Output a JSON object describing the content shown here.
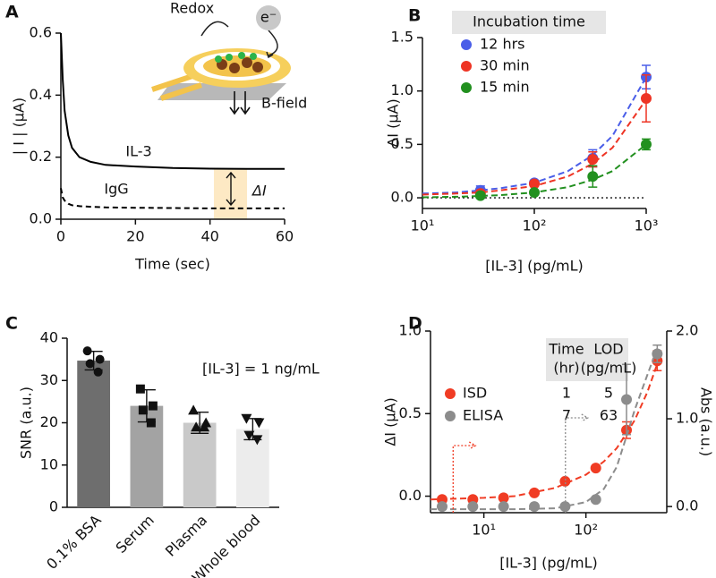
{
  "chart_data": [
    {
      "type": "line",
      "panel_label": "A",
      "xlabel": "Time (sec)",
      "ylabel": "| I | (μA)",
      "xlim": [
        0,
        60
      ],
      "xticks": [
        0,
        20,
        40,
        60
      ],
      "ylim": [
        0,
        0.6
      ],
      "yticks": [
        {
          "value": 0,
          "label": "0.0"
        },
        0.2,
        0.4,
        0.6
      ],
      "x": [
        0,
        0.5,
        1,
        2,
        3,
        5,
        8,
        12,
        20,
        30,
        40,
        50,
        60
      ],
      "series": [
        {
          "name": "IL-3",
          "color": "#000000",
          "linestyle": "solid",
          "values": [
            0.6,
            0.45,
            0.35,
            0.27,
            0.23,
            0.2,
            0.185,
            0.175,
            0.17,
            0.165,
            0.163,
            0.162,
            0.162
          ]
        },
        {
          "name": "IgG",
          "color": "#000000",
          "linestyle": "dashed",
          "values": [
            0.1,
            0.07,
            0.06,
            0.05,
            0.045,
            0.042,
            0.04,
            0.038,
            0.037,
            0.036,
            0.035,
            0.035,
            0.035
          ]
        }
      ],
      "annotations": [
        "ΔI",
        "Redox",
        "e⁻",
        "B-field"
      ]
    },
    {
      "type": "scatter",
      "panel_label": "B",
      "xlabel": "[IL-3] (pg/mL)",
      "ylabel": "ΔI (μA)",
      "xscale": "log",
      "xlim": [
        10,
        1000
      ],
      "xticks": [
        {
          "value": 10,
          "label": "10¹"
        },
        {
          "value": 100,
          "label": "10²"
        },
        {
          "value": 1000,
          "label": "10³"
        }
      ],
      "ylim": [
        -0.1,
        1.5
      ],
      "yticks": [
        {
          "value": 0,
          "label": "0.0"
        },
        0.5,
        {
          "value": 1,
          "label": "1.0"
        },
        1.5
      ],
      "reference_line": 0,
      "legend_title": "Incubation time",
      "x": [
        33,
        100,
        333,
        1000
      ],
      "fit_x": [
        10,
        20,
        33,
        50,
        100,
        200,
        333,
        500,
        1000
      ],
      "series": [
        {
          "name": "12 hrs",
          "color": "#4a5ee8",
          "values": [
            0.07,
            0.14,
            0.37,
            1.13
          ],
          "errors": [
            0.04,
            0.02,
            0.08,
            0.11
          ],
          "fit_values": [
            0.04,
            0.05,
            0.07,
            0.09,
            0.14,
            0.25,
            0.4,
            0.58,
            1.13
          ]
        },
        {
          "name": "30 min",
          "color": "#ee3424",
          "values": [
            0.04,
            0.13,
            0.36,
            0.93
          ],
          "errors": [
            0.03,
            0.02,
            0.07,
            0.22
          ],
          "fit_values": [
            0.03,
            0.04,
            0.05,
            0.07,
            0.11,
            0.2,
            0.32,
            0.47,
            0.92
          ]
        },
        {
          "name": "15 min",
          "color": "#22901f",
          "values": [
            0.02,
            0.05,
            0.2,
            0.5
          ],
          "errors": [
            0.02,
            0.02,
            0.1,
            0.05
          ],
          "fit_values": [
            0.005,
            0.01,
            0.017,
            0.025,
            0.05,
            0.1,
            0.17,
            0.25,
            0.5
          ]
        }
      ]
    },
    {
      "type": "bar",
      "panel_label": "C",
      "ylabel": "SNR (a.u.)",
      "annotation": "[IL-3] = 1 ng/mL",
      "ylim": [
        0,
        40
      ],
      "yticks": [
        0,
        10,
        20,
        30,
        40
      ],
      "categories": [
        "0.1% BSA",
        "Serum",
        "Plasma",
        "Whole blood"
      ],
      "values": [
        34.7,
        24,
        20,
        18.5
      ],
      "errors": [
        2.2,
        3.8,
        2.5,
        2.5
      ],
      "colors": [
        "#6e6e6e",
        "#a3a3a3",
        "#c9c9c9",
        "#ececec"
      ],
      "markers": [
        "circle",
        "square",
        "triangle",
        "triangle-down"
      ],
      "points": [
        [
          37,
          35,
          34,
          32
        ],
        [
          28,
          24,
          23,
          20
        ],
        [
          23,
          20,
          19,
          19
        ],
        [
          21,
          20,
          17,
          16
        ]
      ]
    },
    {
      "type": "scatter",
      "panel_label": "D",
      "xlabel": "[IL-3] (pg/mL)",
      "ylabel": "ΔI (μA)",
      "y2label": "Abs (a.u.)",
      "xscale": "log",
      "xlim": [
        3,
        620
      ],
      "xticks": [
        {
          "value": 10,
          "label": "10¹"
        },
        {
          "value": 100,
          "label": "10²"
        }
      ],
      "ylim": [
        -0.1,
        1.0
      ],
      "yticks": [
        {
          "value": 0,
          "label": "0.0"
        },
        0.5,
        {
          "value": 1,
          "label": "1.0"
        }
      ],
      "y2lim": [
        -0.07,
        2.0
      ],
      "y2ticks": [
        {
          "value": 0,
          "label": "0.0"
        },
        {
          "value": 1,
          "label": "1.0"
        },
        {
          "value": 2,
          "label": "2.0"
        }
      ],
      "x": [
        3.9,
        7.8,
        15.6,
        31.25,
        62.5,
        125,
        250,
        500
      ],
      "fit_x": [
        3,
        10,
        20,
        50,
        100,
        150,
        200,
        250,
        300,
        400,
        500
      ],
      "series": [
        {
          "name": "ISD",
          "color": "#f03c24",
          "values": [
            -0.02,
            -0.02,
            -0.01,
            0.02,
            0.09,
            0.17,
            0.4,
            0.82
          ],
          "errors": [
            0.01,
            0.01,
            0.01,
            0.01,
            0.01,
            0.01,
            0.05,
            0.06
          ],
          "fit_values": [
            -0.02,
            -0.01,
            0.0,
            0.05,
            0.13,
            0.21,
            0.29,
            0.38,
            0.46,
            0.63,
            0.8
          ]
        },
        {
          "name": "ELISA",
          "color": "#8c8c8c",
          "axis": "y2",
          "values": [
            0,
            0,
            0,
            0,
            0,
            0.08,
            1.22,
            1.74
          ],
          "errors": [
            0.01,
            0.01,
            0.01,
            0.01,
            0.01,
            0.02,
            0.4,
            0.1
          ],
          "fit_values": [
            -0.03,
            -0.03,
            -0.03,
            -0.02,
            0.05,
            0.2,
            0.45,
            0.8,
            1.1,
            1.5,
            1.8
          ]
        }
      ],
      "table": {
        "columns": [
          [
            "Time",
            "(hr)"
          ],
          [
            "LOD",
            "(pg/mL)"
          ]
        ],
        "rows": [
          [
            1,
            5
          ],
          [
            7,
            63
          ]
        ]
      }
    }
  ]
}
